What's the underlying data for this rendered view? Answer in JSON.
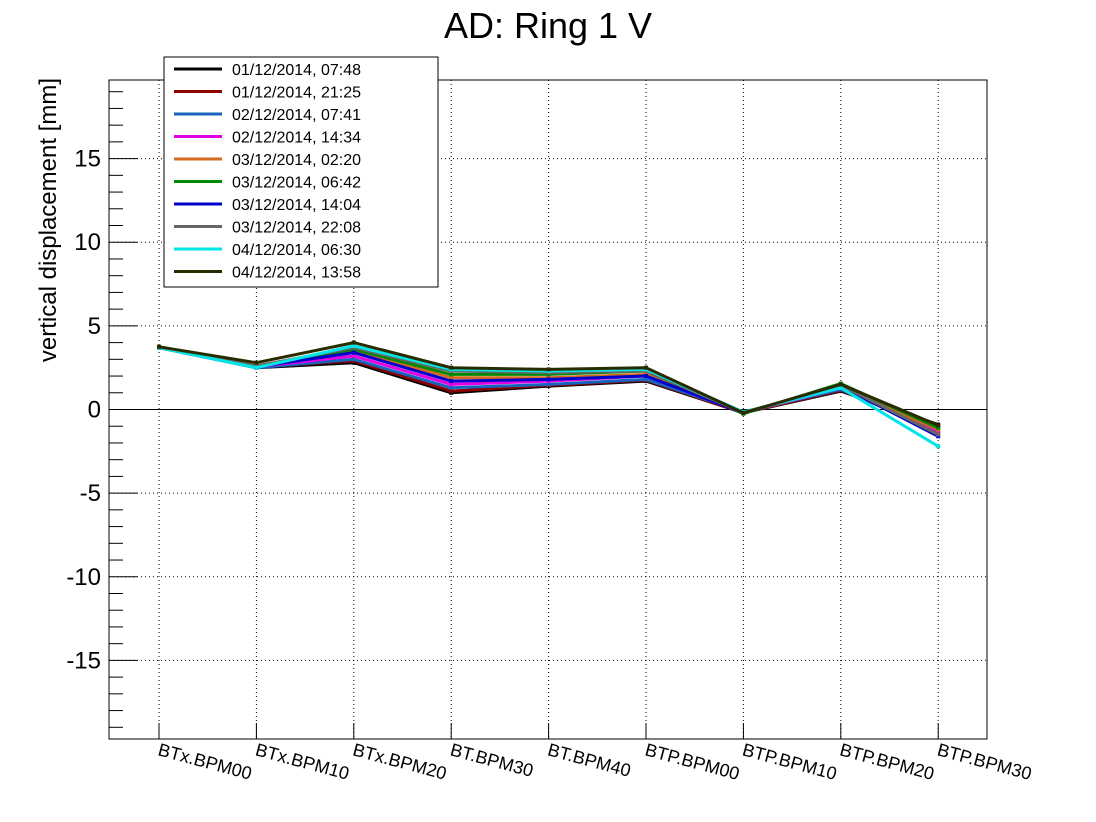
{
  "chart_data": {
    "type": "line",
    "title": "AD: Ring 1 V",
    "xlabel": "",
    "ylabel": "vertical displacement [mm]",
    "ylim": [
      -19.7,
      19.7
    ],
    "yticks": [
      -15,
      -10,
      -5,
      0,
      5,
      10,
      15
    ],
    "grid": true,
    "legend_position": "top-left",
    "categories": [
      "BTx.BPM00",
      "BTx.BPM10",
      "BTx.BPM20",
      "BT.BPM30",
      "BT.BPM40",
      "BTP.BPM00",
      "BTP.BPM10",
      "BTP.BPM20",
      "BTP.BPM30"
    ],
    "series": [
      {
        "name": "01/12/2014, 07:48",
        "color": "#000000",
        "values": [
          3.7,
          2.5,
          2.8,
          1.0,
          1.4,
          1.7,
          -0.2,
          1.1,
          -0.9
        ]
      },
      {
        "name": "01/12/2014, 21:25",
        "color": "#8b0000",
        "values": [
          3.75,
          2.55,
          2.9,
          1.1,
          1.45,
          1.75,
          -0.2,
          1.15,
          -1.0
        ]
      },
      {
        "name": "02/12/2014, 07:41",
        "color": "#1565c0",
        "values": [
          3.7,
          2.5,
          3.0,
          1.3,
          1.5,
          1.8,
          -0.15,
          1.2,
          -1.3
        ]
      },
      {
        "name": "02/12/2014, 14:34",
        "color": "#e000e0",
        "values": [
          3.7,
          2.55,
          3.2,
          1.5,
          1.7,
          2.0,
          -0.2,
          1.3,
          -1.4
        ]
      },
      {
        "name": "03/12/2014, 02:20",
        "color": "#d2691e",
        "values": [
          3.75,
          2.6,
          3.5,
          1.9,
          1.9,
          2.1,
          -0.2,
          1.35,
          -1.2
        ]
      },
      {
        "name": "03/12/2014, 06:42",
        "color": "#008800",
        "values": [
          3.75,
          2.6,
          3.6,
          2.1,
          2.1,
          2.3,
          -0.25,
          1.55,
          -1.1
        ]
      },
      {
        "name": "03/12/2014, 14:04",
        "color": "#0000cc",
        "values": [
          3.7,
          2.55,
          3.4,
          1.7,
          1.8,
          2.0,
          -0.2,
          1.4,
          -1.6
        ]
      },
      {
        "name": "03/12/2014, 22:08",
        "color": "#666666",
        "values": [
          3.7,
          2.6,
          3.7,
          2.3,
          2.2,
          2.3,
          -0.2,
          1.45,
          -1.5
        ]
      },
      {
        "name": "04/12/2014, 06:30",
        "color": "#00e5e5",
        "values": [
          3.7,
          2.5,
          3.8,
          2.4,
          2.3,
          2.4,
          -0.15,
          1.3,
          -2.2
        ]
      },
      {
        "name": "04/12/2014, 13:58",
        "color": "#2b2b00",
        "values": [
          3.75,
          2.8,
          4.0,
          2.5,
          2.4,
          2.5,
          -0.2,
          1.5,
          -0.95
        ]
      }
    ]
  }
}
